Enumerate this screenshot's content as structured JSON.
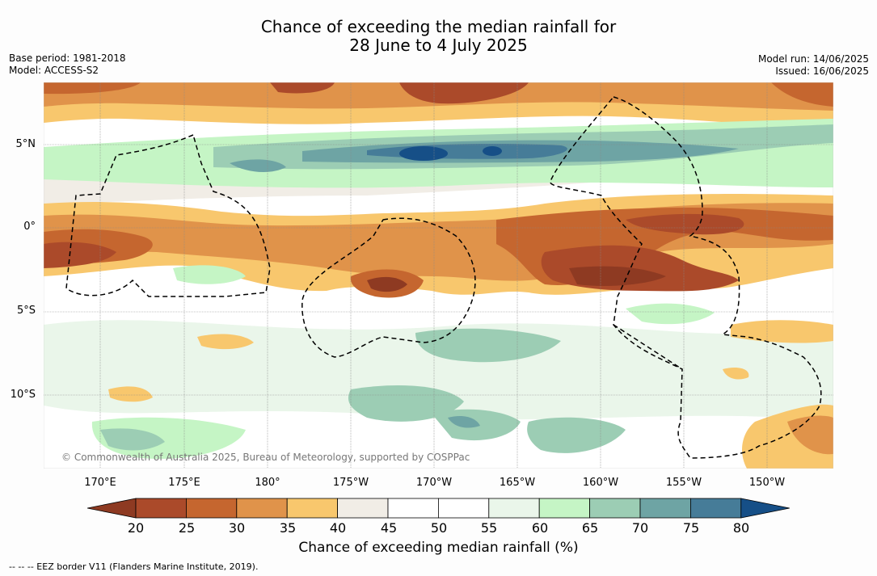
{
  "title": {
    "line1": "Chance of exceeding the median rainfall for",
    "line2": "28 June to 4 July 2025"
  },
  "meta": {
    "base_period": "Base period: 1981-2018",
    "model": "Model: ACCESS-S2",
    "model_run": "Model run: 14/06/2025",
    "issued": "Issued: 16/06/2025"
  },
  "map": {
    "lat_labels": [
      "5°N",
      "0°",
      "5°S",
      "10°S"
    ],
    "lon_labels": [
      "170°E",
      "175°E",
      "180°",
      "175°W",
      "170°W",
      "165°W",
      "160°W",
      "155°W",
      "150°W"
    ],
    "copyright": "© Commonwealth of Australia 2025, Bureau of Meteorology, supported by COSPPac",
    "gridlines": true,
    "border_style": "dashed"
  },
  "colorbar": {
    "title": "Chance of exceeding median rainfall (%)",
    "labels": [
      "20",
      "25",
      "30",
      "35",
      "40",
      "45",
      "50",
      "55",
      "60",
      "65",
      "70",
      "75",
      "80"
    ],
    "colors": [
      "#8e3a22",
      "#ab4a2a",
      "#c5662f",
      "#e0934a",
      "#f8c76d",
      "#f1ede6",
      "#ffffff",
      "#ffffff",
      "#eaf6ea",
      "#c5f5c5",
      "#9ccdb4",
      "#6ea4a4",
      "#467c98",
      "#164f87"
    ]
  },
  "footnote": "--  --  -- EEZ border V11 (Flanders Marine Institute, 2019)."
}
